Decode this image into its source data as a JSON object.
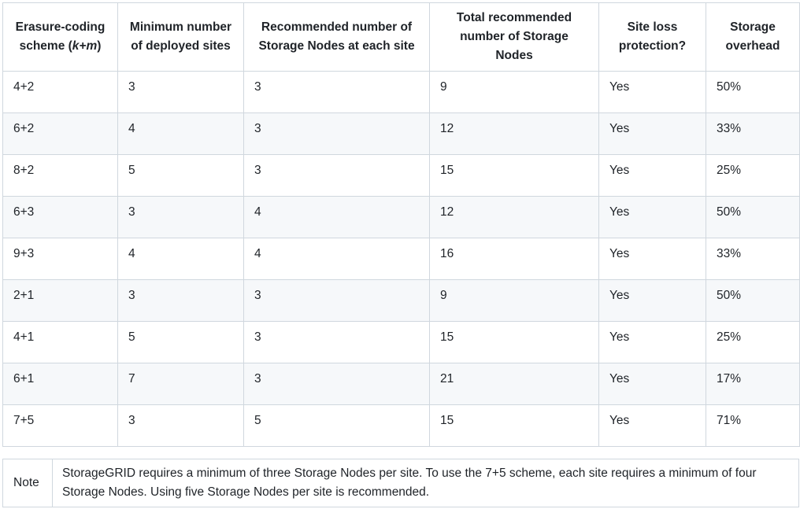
{
  "table": {
    "headers": {
      "scheme_prefix": "Erasure-coding scheme (",
      "scheme_km": "k+m",
      "scheme_suffix": ")",
      "min_sites": "Minimum number of deployed sites",
      "nodes_per_site": "Recommended number of Storage Nodes at each site",
      "total_nodes": "Total recommended number of Storage Nodes",
      "site_loss": "Site loss protection?",
      "overhead": "Storage overhead"
    },
    "rows": [
      {
        "scheme": "4+2",
        "min_sites": "3",
        "nodes_per_site": "3",
        "total_nodes": "9",
        "site_loss": "Yes",
        "overhead": "50%"
      },
      {
        "scheme": "6+2",
        "min_sites": "4",
        "nodes_per_site": "3",
        "total_nodes": "12",
        "site_loss": "Yes",
        "overhead": "33%"
      },
      {
        "scheme": "8+2",
        "min_sites": "5",
        "nodes_per_site": "3",
        "total_nodes": "15",
        "site_loss": "Yes",
        "overhead": "25%"
      },
      {
        "scheme": "6+3",
        "min_sites": "3",
        "nodes_per_site": "4",
        "total_nodes": "12",
        "site_loss": "Yes",
        "overhead": "50%"
      },
      {
        "scheme": "9+3",
        "min_sites": "4",
        "nodes_per_site": "4",
        "total_nodes": "16",
        "site_loss": "Yes",
        "overhead": "33%"
      },
      {
        "scheme": "2+1",
        "min_sites": "3",
        "nodes_per_site": "3",
        "total_nodes": "9",
        "site_loss": "Yes",
        "overhead": "50%"
      },
      {
        "scheme": "4+1",
        "min_sites": "5",
        "nodes_per_site": "3",
        "total_nodes": "15",
        "site_loss": "Yes",
        "overhead": "25%"
      },
      {
        "scheme": "6+1",
        "min_sites": "7",
        "nodes_per_site": "3",
        "total_nodes": "21",
        "site_loss": "Yes",
        "overhead": "17%"
      },
      {
        "scheme": "7+5",
        "min_sites": "3",
        "nodes_per_site": "5",
        "total_nodes": "15",
        "site_loss": "Yes",
        "overhead": "71%"
      }
    ]
  },
  "note": {
    "label": "Note",
    "text": "StorageGRID requires a minimum of three Storage Nodes per site. To use the 7+5 scheme, each site requires a minimum of four Storage Nodes. Using five Storage Nodes per site is recommended."
  },
  "colors": {
    "border": "#d0d7de",
    "stripe": "#f6f8fa",
    "text": "#1f2328"
  }
}
